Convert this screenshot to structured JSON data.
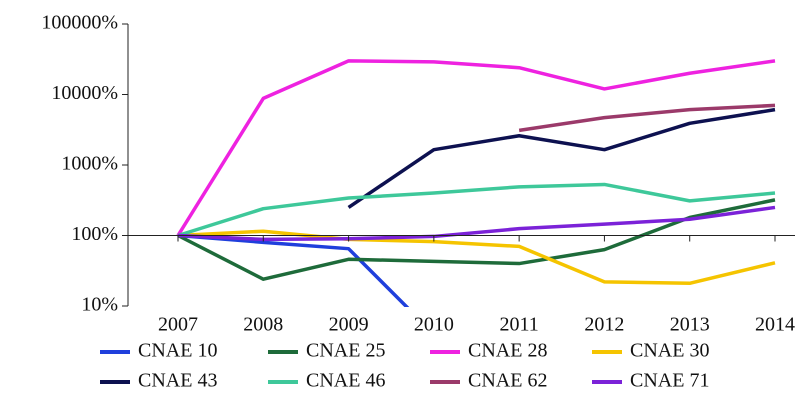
{
  "chart_data": {
    "type": "line",
    "x": [
      2007,
      2008,
      2009,
      2010,
      2011,
      2012,
      2013,
      2014
    ],
    "xlim": [
      2007,
      2014
    ],
    "ylim": [
      10,
      100000
    ],
    "log_scale": true,
    "yticks": [
      {
        "value": 10,
        "label": "10%"
      },
      {
        "value": 100,
        "label": "100%"
      },
      {
        "value": 1000,
        "label": "1000%"
      },
      {
        "value": 10000,
        "label": "10000%"
      },
      {
        "value": 100000,
        "label": "100000%"
      }
    ],
    "series": [
      {
        "name": "CNAE 10",
        "color": "#1f3fdc",
        "values": [
          100,
          80,
          65,
          4,
          null,
          null,
          null,
          null
        ]
      },
      {
        "name": "CNAE 25",
        "color": "#1e6b3a",
        "values": [
          100,
          24,
          46,
          43,
          40,
          63,
          180,
          320
        ]
      },
      {
        "name": "CNAE 28",
        "color": "#ee22e0",
        "values": [
          100,
          8800,
          30000,
          29000,
          24000,
          12000,
          20000,
          30000
        ]
      },
      {
        "name": "CNAE 30",
        "color": "#f5c400",
        "values": [
          100,
          115,
          88,
          82,
          70,
          22,
          21,
          41
        ]
      },
      {
        "name": "CNAE 43",
        "color": "#0d1150",
        "values": [
          null,
          null,
          250,
          1650,
          2600,
          1650,
          3900,
          6100
        ]
      },
      {
        "name": "CNAE 46",
        "color": "#3ec89a",
        "values": [
          100,
          240,
          340,
          400,
          490,
          530,
          310,
          400
        ]
      },
      {
        "name": "CNAE 62",
        "color": "#9b3a6a",
        "values": [
          null,
          null,
          null,
          null,
          3100,
          4700,
          6100,
          7000
        ]
      },
      {
        "name": "CNAE 71",
        "color": "#7b22d8",
        "values": [
          100,
          88,
          90,
          97,
          125,
          145,
          170,
          250
        ]
      }
    ]
  }
}
